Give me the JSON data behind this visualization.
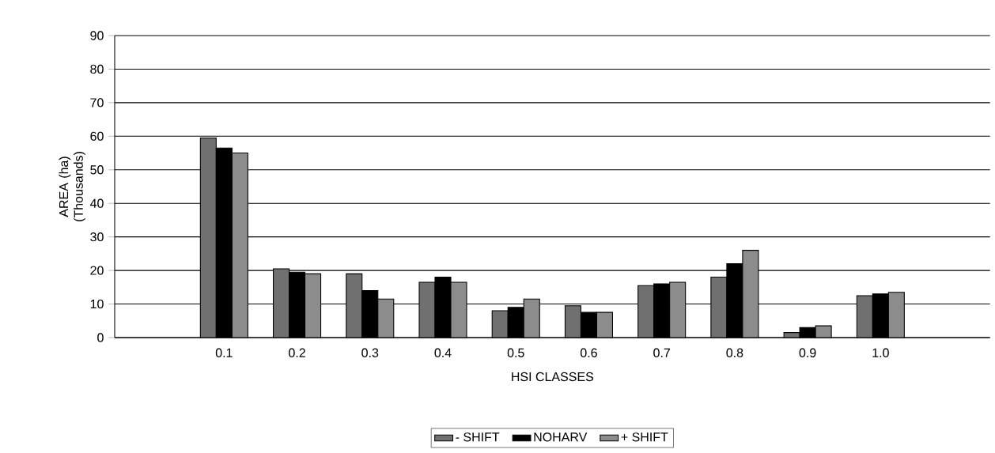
{
  "chart_data": {
    "type": "bar",
    "xlabel": "HSI CLASSES",
    "ylabel": "AREA (ha) (Thousands)",
    "categories": [
      null,
      "0.1",
      "0.2",
      "0.3",
      "0.4",
      "0.5",
      "0.6",
      "0.7",
      "0.8",
      "0.9",
      "1.0",
      null
    ],
    "series": [
      {
        "name": "- SHIFT",
        "color": "#707070",
        "values": [
          null,
          59.5,
          20.5,
          19,
          16.5,
          8,
          9.5,
          15.5,
          18,
          1.5,
          12.5,
          null
        ]
      },
      {
        "name": "NOHARV",
        "color": "#000000",
        "values": [
          null,
          56.5,
          19.5,
          14,
          18,
          9,
          7.5,
          16,
          22,
          3,
          13,
          null
        ]
      },
      {
        "name": "+ SHIFT",
        "color": "#8c8c8c",
        "values": [
          null,
          55,
          19,
          11.5,
          16.5,
          11.5,
          7.5,
          16.5,
          26,
          3.5,
          13.5,
          null
        ]
      }
    ],
    "ylim": [
      0,
      90
    ],
    "yticks": [
      0,
      10,
      20,
      30,
      40,
      50,
      60,
      70,
      80,
      90
    ],
    "grid": "y",
    "legend": "bottom"
  }
}
